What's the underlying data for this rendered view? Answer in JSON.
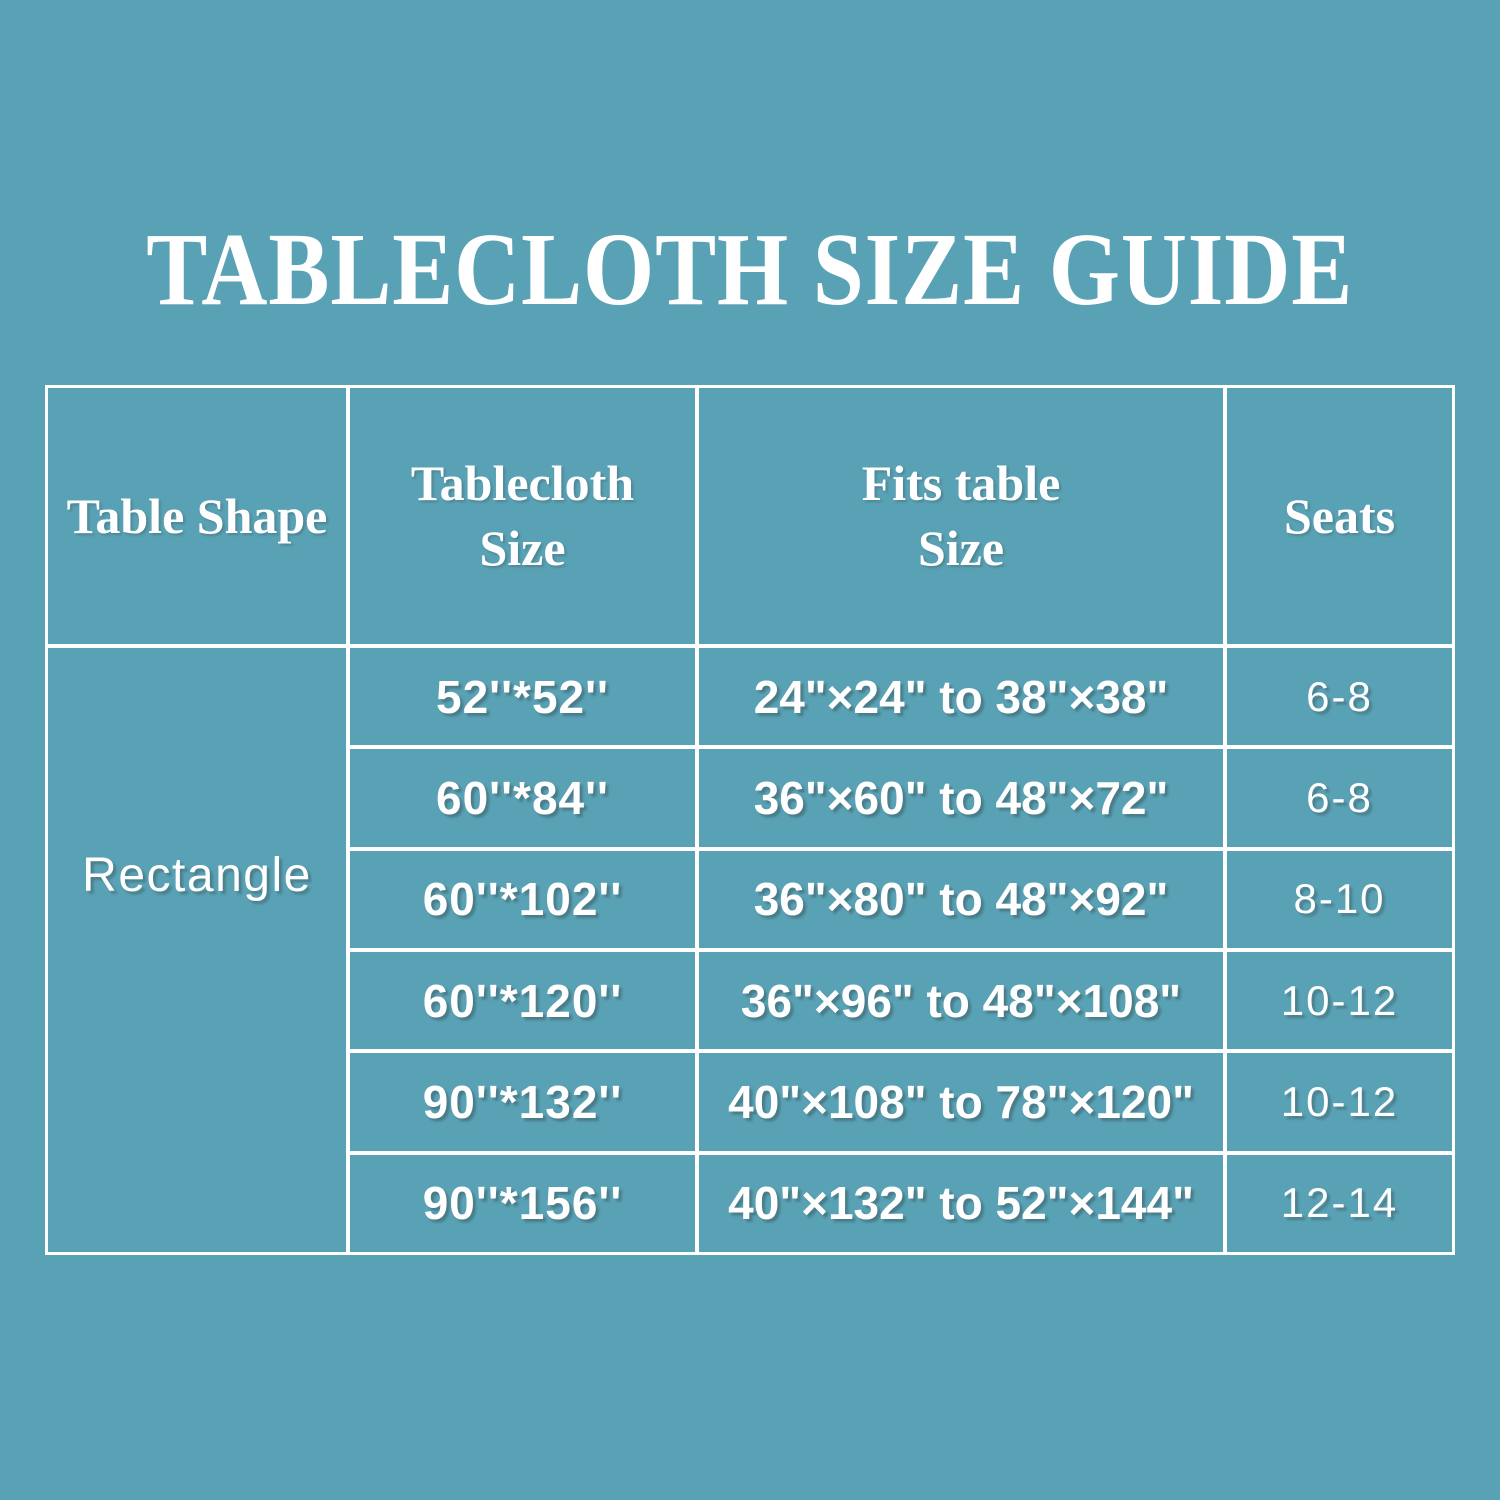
{
  "colors": {
    "background": "#59A1B4",
    "grid_lines": "#FFFFFF",
    "text": "#FFFFFF"
  },
  "title": "TABLECLOTH SIZE GUIDE",
  "chart_data": {
    "type": "table",
    "title": "TABLECLOTH SIZE GUIDE",
    "columns": [
      "Table Shape",
      "Tablecloth Size",
      "Fits table Size",
      "Seats"
    ],
    "shape_value": "Rectangle",
    "rows": [
      [
        "52''*52''",
        "24\"×24\" to 38\"×38\"",
        "6-8"
      ],
      [
        "60''*84''",
        "36\"×60\" to 48\"×72\"",
        "6-8"
      ],
      [
        "60''*102''",
        "36\"×80\" to 48\"×92\"",
        "8-10"
      ],
      [
        "60''*120''",
        "36\"×96\" to 48\"×108\"",
        "10-12"
      ],
      [
        "90''*132''",
        "40\"×108\" to 78\"×120\"",
        "10-12"
      ],
      [
        "90''*156''",
        "40\"×132\" to 52\"×144\"",
        "12-14"
      ]
    ],
    "layout": {
      "shape_column_merged_rows": 6,
      "grid": "white lines on teal background",
      "header_font": "serif bold",
      "body_font": "rounded sans bold"
    }
  }
}
